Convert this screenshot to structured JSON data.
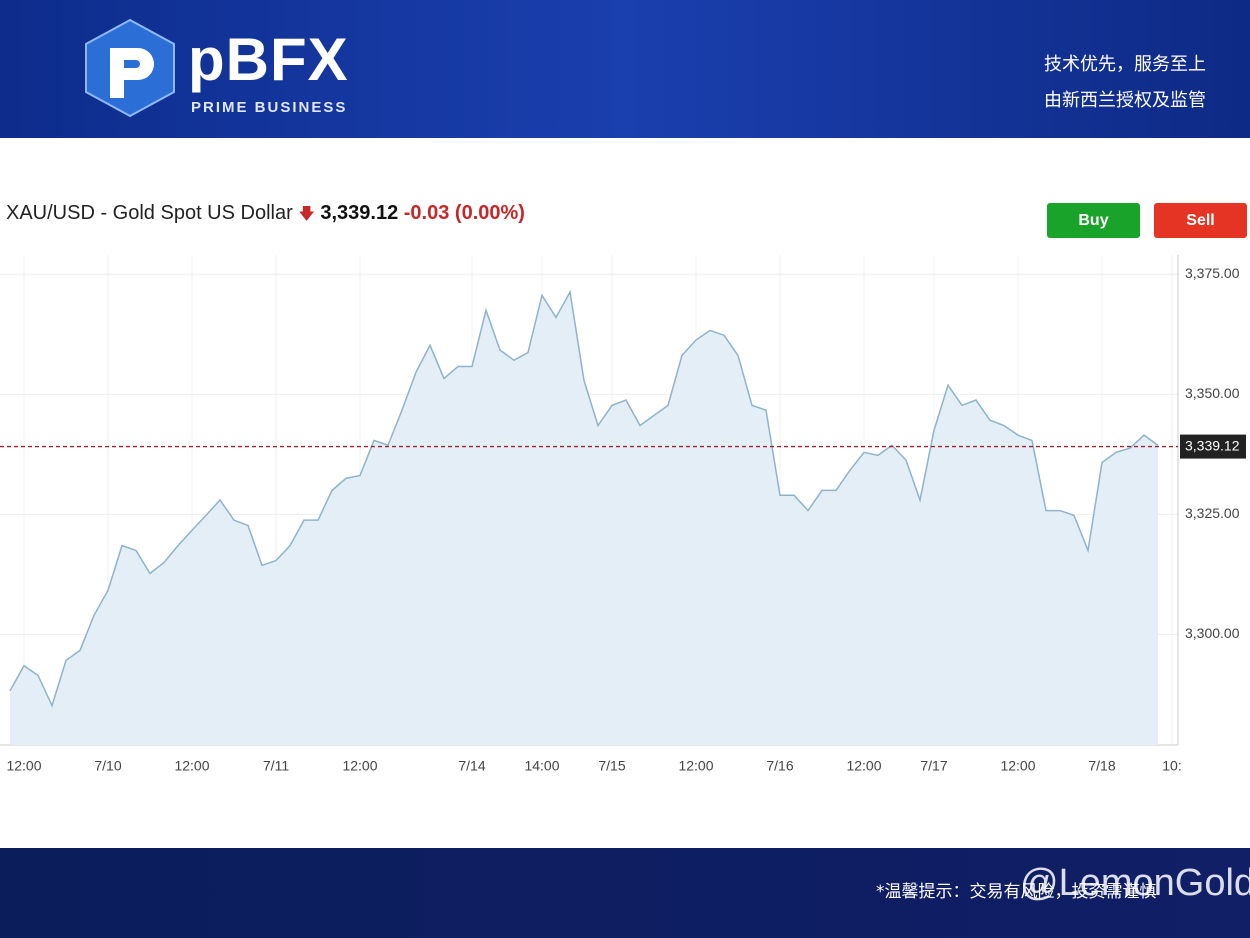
{
  "header": {
    "logo_text": "pBFX",
    "logo_subtitle": "PRIME BUSINESS",
    "tagline_1": "技术优先，服务至上",
    "tagline_2": "由新西兰授权及监管"
  },
  "quote": {
    "symbol": "XAU/USD - Gold Spot US Dollar",
    "price": "3,339.12",
    "change": "-0.03",
    "change_pct": "(0.00%)"
  },
  "buttons": {
    "buy": "Buy",
    "sell": "Sell"
  },
  "footer": {
    "notice": "*温馨提示：交易有风险，投资需谨慎",
    "watermark": "@LemonGold"
  },
  "chart_data": {
    "type": "area",
    "color": "#8fb3c9",
    "fill": "#e4eef6",
    "grid": true,
    "categories": [
      null,
      "12:00",
      null,
      null,
      null,
      null,
      null,
      "7/10",
      null,
      null,
      null,
      null,
      null,
      "12:00",
      null,
      null,
      null,
      null,
      null,
      "7/11",
      null,
      null,
      null,
      null,
      null,
      "12:00",
      null,
      null,
      null,
      null,
      null,
      null,
      null,
      "7/14",
      null,
      null,
      null,
      null,
      "14:00",
      null,
      null,
      null,
      null,
      "7/15",
      null,
      null,
      null,
      null,
      null,
      "12:00",
      null,
      null,
      null,
      null,
      null,
      "7/16",
      null,
      null,
      null,
      null,
      null,
      "12:00",
      null,
      null,
      null,
      null,
      "7/17",
      null,
      null,
      null,
      null,
      null,
      "12:00",
      null,
      null,
      null,
      null,
      null,
      "7/18",
      null,
      null,
      null,
      null,
      "10:"
    ],
    "values": [
      3288.3,
      3293.5,
      3291.5,
      3285.2,
      3294.6,
      3296.7,
      3304,
      3309.2,
      3318.5,
      3317.5,
      3312.7,
      3315,
      3318.5,
      3321.7,
      3324.8,
      3328,
      3323.8,
      3322.7,
      3314.4,
      3315.4,
      3318.5,
      3323.8,
      3323.8,
      3330,
      3332.5,
      3333.1,
      3340.4,
      3339.4,
      3346.7,
      3354.6,
      3360.2,
      3353.3,
      3355.8,
      3355.8,
      3367.5,
      3359.2,
      3357.1,
      3358.7,
      3370.6,
      3366,
      3371.3,
      3352.9,
      3343.5,
      3347.7,
      3348.8,
      3343.5,
      3345.6,
      3347.7,
      3358.1,
      3361.3,
      3363.3,
      3362.3,
      3358.1,
      3347.7,
      3346.7,
      3329,
      3329,
      3325.8,
      3330,
      3330,
      3334.2,
      3337.9,
      3337.3,
      3339.4,
      3336.3,
      3328,
      3342.5,
      3351.9,
      3347.7,
      3348.8,
      3344.6,
      3343.5,
      3341.5,
      3340.4,
      3325.8,
      3325.8,
      3324.8,
      3317.5,
      3335.8,
      3337.9,
      3338.8,
      3341.5,
      3339.4,
      null
    ],
    "ylim": [
      3277,
      3379
    ],
    "yticks": [
      {
        "value": 3300,
        "label": "3,300.00"
      },
      {
        "value": 3325,
        "label": "3,325.00"
      },
      {
        "value": 3350,
        "label": "3,350.00"
      },
      {
        "value": 3375,
        "label": "3,375.00"
      }
    ],
    "last_price": {
      "value": 3339.12,
      "label": "3,339.12"
    }
  }
}
